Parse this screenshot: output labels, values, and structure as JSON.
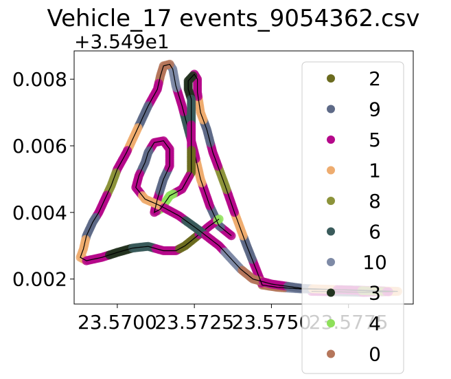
{
  "chart_data": {
    "type": "scatter",
    "title": "Vehicle_17 events_9054362.csv",
    "y_offset_label": "+3.549e1",
    "xlabel": "",
    "ylabel": "",
    "xlim": [
      23.5686,
      23.5796
    ],
    "ylim": [
      0.00125,
      0.00885
    ],
    "x_ticks": [
      23.57,
      23.5725,
      23.575,
      23.5775
    ],
    "x_tick_labels": [
      "23.5700",
      "23.5725",
      "23.5750",
      "23.5775"
    ],
    "y_ticks": [
      0.002,
      0.004,
      0.006,
      0.008
    ],
    "y_tick_labels": [
      "0.002",
      "0.004",
      "0.006",
      "0.008"
    ],
    "grid": false,
    "legend_position": "right, overlapping plot",
    "legend_entries": [
      "2",
      "9",
      "5",
      "1",
      "8",
      "6",
      "10",
      "3",
      "4",
      "0"
    ],
    "series_colors": {
      "2": "#6b6b1f",
      "9": "#5e6a87",
      "5": "#b5088a",
      "1": "#eeac6f",
      "8": "#8c933a",
      "6": "#3a5b5b",
      "10": "#7e8aa6",
      "3": "#233320",
      "4": "#8ee05a",
      "0": "#b5765b"
    },
    "route_line_color": "#000000",
    "route": [
      [
        23.5763,
        0.00163
      ],
      [
        23.578,
        0.0016
      ],
      [
        23.5791,
        0.00163
      ],
      [
        23.5777,
        0.00167
      ],
      [
        23.576,
        0.0017
      ],
      [
        23.5752,
        0.00175
      ],
      [
        23.5747,
        0.00182
      ],
      [
        23.5745,
        0.0023
      ],
      [
        23.5742,
        0.003
      ],
      [
        23.5738,
        0.004
      ],
      [
        23.5735,
        0.0048
      ],
      [
        23.5731,
        0.0058
      ],
      [
        23.5729,
        0.0065
      ],
      [
        23.5727,
        0.007
      ],
      [
        23.5726,
        0.0076
      ],
      [
        23.5726,
        0.008
      ],
      [
        23.5725,
        0.00815
      ],
      [
        23.5723,
        0.00795
      ],
      [
        23.5723,
        0.0077
      ],
      [
        23.5724,
        0.0074
      ],
      [
        23.5724,
        0.007
      ],
      [
        23.5724,
        0.0065
      ],
      [
        23.5724,
        0.006
      ],
      [
        23.5724,
        0.0056
      ],
      [
        23.5724,
        0.0052
      ],
      [
        23.5721,
        0.0047
      ],
      [
        23.5717,
        0.0045
      ],
      [
        23.5714,
        0.0041
      ],
      [
        23.5712,
        0.004
      ],
      [
        23.5713,
        0.0044
      ],
      [
        23.5715,
        0.005
      ],
      [
        23.5717,
        0.0054
      ],
      [
        23.5717,
        0.0059
      ],
      [
        23.5715,
        0.00615
      ],
      [
        23.5712,
        0.0061
      ],
      [
        23.571,
        0.0058
      ],
      [
        23.5709,
        0.0055
      ],
      [
        23.5707,
        0.0051
      ],
      [
        23.5706,
        0.00475
      ],
      [
        23.5709,
        0.0044
      ],
      [
        23.5714,
        0.0042
      ],
      [
        23.572,
        0.0039
      ],
      [
        23.5726,
        0.0035
      ],
      [
        23.5733,
        0.003
      ],
      [
        23.574,
        0.0023
      ],
      [
        23.5744,
        0.002
      ],
      [
        23.575,
        0.00185
      ],
      [
        23.576,
        0.00172
      ],
      [
        23.5772,
        0.00168
      ],
      [
        23.5788,
        0.00162
      ]
    ],
    "route2": [
      [
        23.5737,
        0.0033
      ],
      [
        23.5733,
        0.0036
      ],
      [
        23.573,
        0.0042
      ],
      [
        23.5727,
        0.005
      ],
      [
        23.5725,
        0.0058
      ],
      [
        23.5723,
        0.0065
      ],
      [
        23.5721,
        0.0072
      ],
      [
        23.5719,
        0.0078
      ],
      [
        23.5718,
        0.0083
      ],
      [
        23.5717,
        0.00845
      ],
      [
        23.5715,
        0.0084
      ],
      [
        23.5714,
        0.0081
      ],
      [
        23.5713,
        0.0077
      ],
      [
        23.571,
        0.0072
      ],
      [
        23.5707,
        0.0066
      ],
      [
        23.5703,
        0.0058
      ],
      [
        23.57,
        0.0053
      ],
      [
        23.5698,
        0.0048
      ],
      [
        23.5696,
        0.0044
      ],
      [
        23.5694,
        0.004
      ],
      [
        23.5692,
        0.0037
      ],
      [
        23.569,
        0.0033
      ],
      [
        23.5689,
        0.0029
      ],
      [
        23.5688,
        0.00265
      ],
      [
        23.569,
        0.00255
      ],
      [
        23.5695,
        0.00265
      ],
      [
        23.57,
        0.0028
      ],
      [
        23.5705,
        0.00293
      ],
      [
        23.571,
        0.00298
      ],
      [
        23.5715,
        0.00285
      ],
      [
        23.5719,
        0.00285
      ],
      [
        23.5722,
        0.003
      ],
      [
        23.5726,
        0.0033
      ],
      [
        23.573,
        0.0036
      ],
      [
        23.5733,
        0.0038
      ]
    ]
  }
}
